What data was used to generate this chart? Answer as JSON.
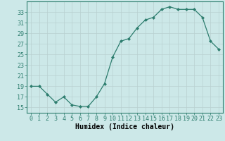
{
  "x": [
    0,
    1,
    2,
    3,
    4,
    5,
    6,
    7,
    8,
    9,
    10,
    11,
    12,
    13,
    14,
    15,
    16,
    17,
    18,
    19,
    20,
    21,
    22,
    23
  ],
  "y": [
    19,
    19,
    17.5,
    16,
    17,
    15.5,
    15.2,
    15.2,
    17,
    19.5,
    24.5,
    27.5,
    28,
    30,
    31.5,
    32,
    33.5,
    34,
    33.5,
    33.5,
    33.5,
    32,
    27.5,
    26
  ],
  "xlabel": "Humidex (Indice chaleur)",
  "xlim": [
    -0.5,
    23.5
  ],
  "ylim": [
    14,
    35
  ],
  "yticks": [
    15,
    17,
    19,
    21,
    23,
    25,
    27,
    29,
    31,
    33
  ],
  "xticks": [
    0,
    1,
    2,
    3,
    4,
    5,
    6,
    7,
    8,
    9,
    10,
    11,
    12,
    13,
    14,
    15,
    16,
    17,
    18,
    19,
    20,
    21,
    22,
    23
  ],
  "line_color": "#2d7d6e",
  "marker_color": "#2d7d6e",
  "bg_color": "#cce8e8",
  "grid_color_minor": "#c8e0e0",
  "grid_color_major": "#b8d0d0",
  "spine_color": "#2d7d6e",
  "tick_color": "#2d7d6e",
  "xlabel_fontsize": 7,
  "tick_fontsize": 6
}
